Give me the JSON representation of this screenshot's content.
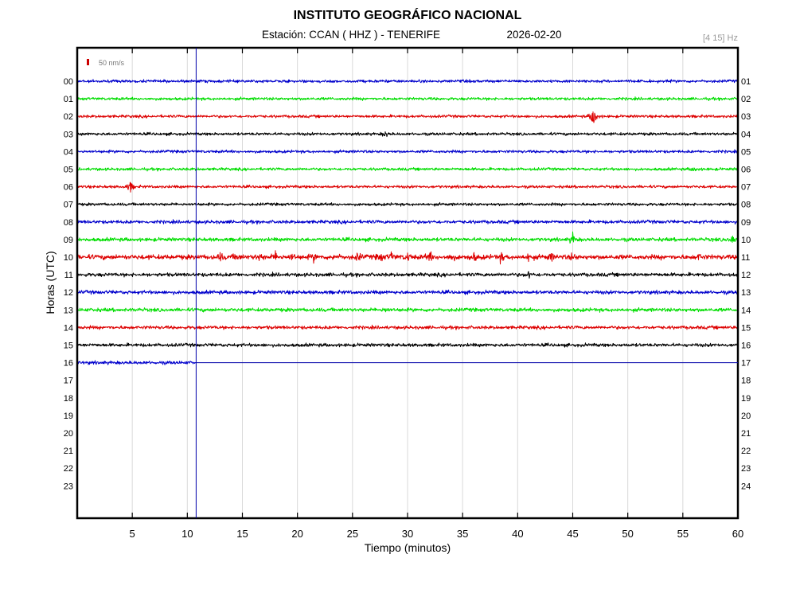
{
  "header": {
    "institution": "INSTITUTO GEOGRÁFICO NACIONAL",
    "station": "Estación:  CCAN ( HHZ ) - TENERIFE",
    "date": "2026-02-20",
    "filter": "[4 15] Hz"
  },
  "scale_bar": {
    "label": "50 nm/s",
    "color": "#cc0000"
  },
  "colors": {
    "blue": "#0000cc",
    "green": "#00dd00",
    "red": "#dd0000",
    "black": "#000000",
    "frame": "#000000",
    "grid": "#d9d9d9",
    "current_time_line": "#0000aa"
  },
  "chart_data": {
    "type": "seismogram",
    "title": "INSTITUTO GEOGRÁFICO NACIONAL",
    "subtitle": "Estación:  CCAN ( HHZ ) - TENERIFE",
    "xlabel": "Tiempo (minutos)",
    "ylabel": "Horas (UTC)",
    "xlim": [
      0,
      60
    ],
    "x_ticks": [
      5,
      10,
      15,
      20,
      25,
      30,
      35,
      40,
      45,
      50,
      55,
      60
    ],
    "grid": true,
    "current_time_minute": 10.8,
    "left_hours": [
      "00",
      "01",
      "02",
      "03",
      "04",
      "05",
      "06",
      "07",
      "08",
      "09",
      "10",
      "11",
      "12",
      "13",
      "14",
      "15",
      "16",
      "17",
      "18",
      "19",
      "20",
      "21",
      "22",
      "23"
    ],
    "right_hours": [
      "01",
      "02",
      "03",
      "04",
      "05",
      "06",
      "07",
      "08",
      "09",
      "10",
      "11",
      "12",
      "13",
      "14",
      "15",
      "16",
      "17",
      "18",
      "19",
      "20",
      "21",
      "22",
      "23",
      "24"
    ],
    "traces": [
      {
        "hour": "00",
        "color": "blue",
        "amp": 1.0,
        "events": []
      },
      {
        "hour": "01",
        "color": "green",
        "amp": 1.0,
        "events": []
      },
      {
        "hour": "02",
        "color": "red",
        "amp": 1.0,
        "events": [
          {
            "minute": 46.9,
            "amp": 10
          }
        ]
      },
      {
        "hour": "03",
        "color": "black",
        "amp": 1.0,
        "events": [
          {
            "minute": 28,
            "amp": 2.5
          }
        ]
      },
      {
        "hour": "04",
        "color": "blue",
        "amp": 1.0,
        "events": []
      },
      {
        "hour": "05",
        "color": "green",
        "amp": 1.0,
        "events": [
          {
            "minute": 56,
            "amp": 2
          }
        ]
      },
      {
        "hour": "06",
        "color": "red",
        "amp": 1.0,
        "events": [
          {
            "minute": 4.8,
            "amp": 4.5
          }
        ]
      },
      {
        "hour": "07",
        "color": "black",
        "amp": 1.0,
        "events": []
      },
      {
        "hour": "08",
        "color": "blue",
        "amp": 1.2,
        "events": []
      },
      {
        "hour": "09",
        "color": "green",
        "amp": 1.3,
        "events": [
          {
            "minute": 45,
            "amp": 4
          },
          {
            "minute": 59.5,
            "amp": 4
          }
        ]
      },
      {
        "hour": "10",
        "color": "red",
        "amp": 1.7,
        "events": [
          {
            "minute": 13,
            "amp": 2.5
          },
          {
            "minute": 14.5,
            "amp": 2.5
          },
          {
            "minute": 16.5,
            "amp": 2.5
          },
          {
            "minute": 18,
            "amp": 2.8
          },
          {
            "minute": 19.5,
            "amp": 2.5
          },
          {
            "minute": 21.5,
            "amp": 2.5
          },
          {
            "minute": 23.5,
            "amp": 2.5
          },
          {
            "minute": 25.5,
            "amp": 2.8
          },
          {
            "minute": 27.5,
            "amp": 3
          },
          {
            "minute": 28.5,
            "amp": 3
          },
          {
            "minute": 30,
            "amp": 2.8
          },
          {
            "minute": 32,
            "amp": 3.5
          },
          {
            "minute": 34,
            "amp": 3
          },
          {
            "minute": 36,
            "amp": 2.8
          },
          {
            "minute": 38.5,
            "amp": 3.2
          },
          {
            "minute": 41,
            "amp": 2.8
          },
          {
            "minute": 43,
            "amp": 3
          },
          {
            "minute": 45,
            "amp": 2.5
          },
          {
            "minute": 56.5,
            "amp": 2.2
          }
        ]
      },
      {
        "hour": "11",
        "color": "black",
        "amp": 1.3,
        "events": [
          {
            "minute": 41,
            "amp": 2.5
          }
        ]
      },
      {
        "hour": "12",
        "color": "blue",
        "amp": 1.3,
        "events": []
      },
      {
        "hour": "13",
        "color": "green",
        "amp": 1.3,
        "events": [
          {
            "minute": 28,
            "amp": 2
          }
        ]
      },
      {
        "hour": "14",
        "color": "red",
        "amp": 1.2,
        "events": []
      },
      {
        "hour": "15",
        "color": "black",
        "amp": 1.2,
        "events": []
      },
      {
        "hour": "16",
        "color": "blue",
        "amp": 1.2,
        "end_minute": 10.8,
        "events": []
      }
    ]
  }
}
